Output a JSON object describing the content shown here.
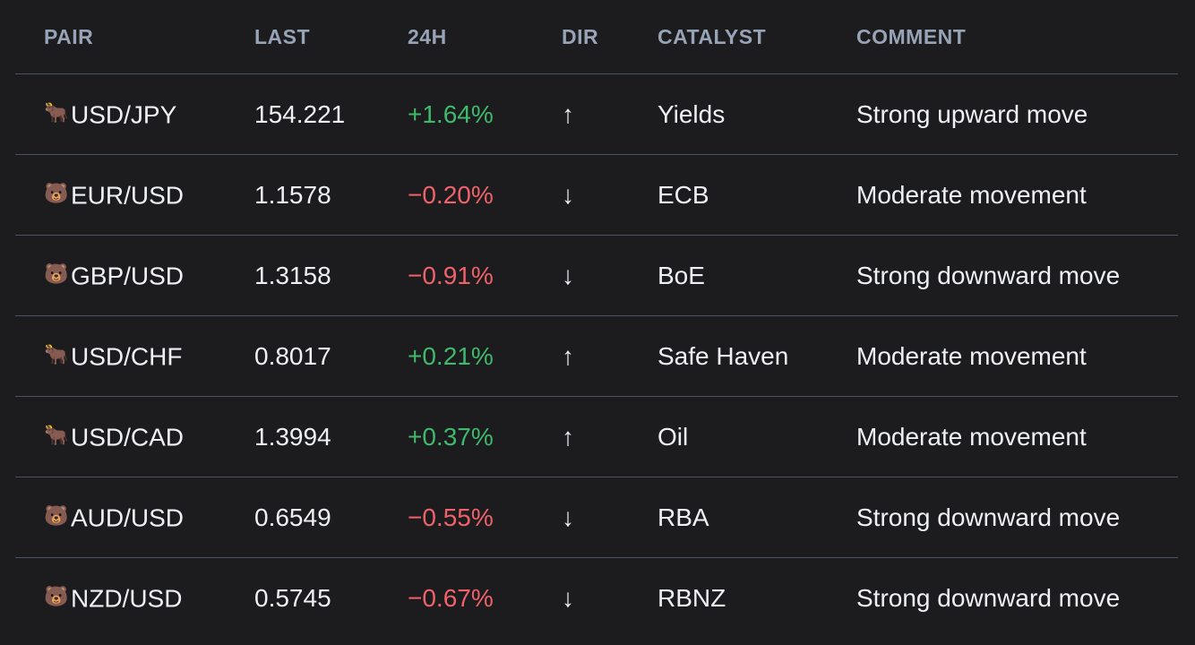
{
  "headers": {
    "pair": "PAIR",
    "last": "LAST",
    "change": "24H",
    "dir": "DIR",
    "catalyst": "CATALYST",
    "comment": "COMMENT"
  },
  "colors": {
    "positive": "#3fb96b",
    "negative": "#f0626a",
    "header": "#97a3b6",
    "text": "#eef0f3",
    "background": "#1c1c1e"
  },
  "rows": [
    {
      "icon": "🐂",
      "icon_name": "bull-icon",
      "pair": "USD/JPY",
      "last": "154.221",
      "change": "+1.64%",
      "trend": "positive",
      "dir": "↑",
      "dir_name": "arrow-up-icon",
      "catalyst": "Yields",
      "comment": "Strong upward move"
    },
    {
      "icon": "🐻",
      "icon_name": "bear-icon",
      "pair": "EUR/USD",
      "last": "1.1578",
      "change": "−0.20%",
      "trend": "negative",
      "dir": "↓",
      "dir_name": "arrow-down-icon",
      "catalyst": "ECB",
      "comment": "Moderate movement"
    },
    {
      "icon": "🐻",
      "icon_name": "bear-icon",
      "pair": "GBP/USD",
      "last": "1.3158",
      "change": "−0.91%",
      "trend": "negative",
      "dir": "↓",
      "dir_name": "arrow-down-icon",
      "catalyst": "BoE",
      "comment": "Strong downward move"
    },
    {
      "icon": "🐂",
      "icon_name": "bull-icon",
      "pair": "USD/CHF",
      "last": "0.8017",
      "change": "+0.21%",
      "trend": "positive",
      "dir": "↑",
      "dir_name": "arrow-up-icon",
      "catalyst": "Safe Haven",
      "comment": "Moderate movement"
    },
    {
      "icon": "🐂",
      "icon_name": "bull-icon",
      "pair": "USD/CAD",
      "last": "1.3994",
      "change": "+0.37%",
      "trend": "positive",
      "dir": "↑",
      "dir_name": "arrow-up-icon",
      "catalyst": "Oil",
      "comment": "Moderate movement"
    },
    {
      "icon": "🐻",
      "icon_name": "bear-icon",
      "pair": "AUD/USD",
      "last": "0.6549",
      "change": "−0.55%",
      "trend": "negative",
      "dir": "↓",
      "dir_name": "arrow-down-icon",
      "catalyst": "RBA",
      "comment": "Strong downward move"
    },
    {
      "icon": "🐻",
      "icon_name": "bear-icon",
      "pair": "NZD/USD",
      "last": "0.5745",
      "change": "−0.67%",
      "trend": "negative",
      "dir": "↓",
      "dir_name": "arrow-down-icon",
      "catalyst": "RBNZ",
      "comment": "Strong downward move"
    }
  ]
}
